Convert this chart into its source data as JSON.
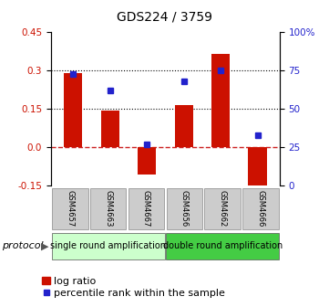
{
  "title": "GDS224 / 3759",
  "samples": [
    "GSM4657",
    "GSM4663",
    "GSM4667",
    "GSM4656",
    "GSM4662",
    "GSM4666"
  ],
  "log_ratios": [
    0.29,
    0.143,
    -0.105,
    0.165,
    0.365,
    -0.165
  ],
  "percentile_ranks": [
    73,
    62,
    27,
    68,
    75,
    33
  ],
  "bar_color": "#cc1100",
  "dot_color": "#2222cc",
  "ylim_left": [
    -0.15,
    0.45
  ],
  "ylim_right": [
    0,
    100
  ],
  "y_ticks_left": [
    -0.15,
    0.0,
    0.15,
    0.3,
    0.45
  ],
  "y_ticks_right": [
    0,
    25,
    50,
    75,
    100
  ],
  "protocol_groups": [
    {
      "label": "single round amplification",
      "indices": [
        0,
        1,
        2
      ],
      "color": "#ccffcc"
    },
    {
      "label": "double round amplification",
      "indices": [
        3,
        4,
        5
      ],
      "color": "#44cc44"
    }
  ],
  "protocol_label": "protocol",
  "legend_bar_label": "log ratio",
  "legend_dot_label": "percentile rank within the sample",
  "bar_width": 0.5,
  "title_fontsize": 10,
  "tick_fontsize": 7.5,
  "legend_fontsize": 8,
  "protocol_fontsize": 7,
  "sample_box_color": "#cccccc",
  "zero_line_color": "#cc2222",
  "dotted_line_color": "black"
}
